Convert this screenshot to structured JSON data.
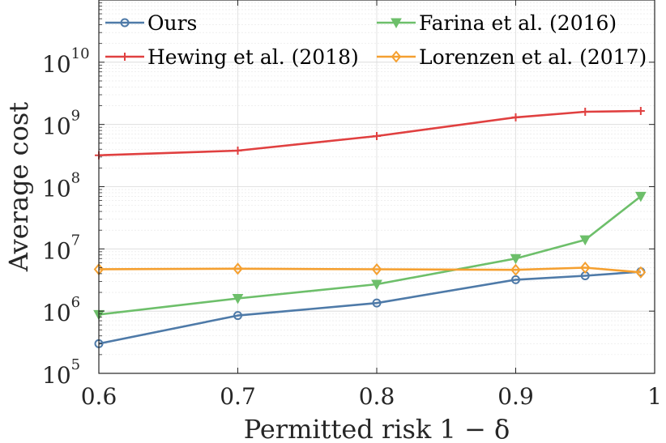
{
  "chart_data": {
    "type": "line",
    "xlabel": "Permitted risk 1 − δ",
    "ylabel": "Average cost",
    "xlim": [
      0.6,
      1.0
    ],
    "ylim_log10": [
      5,
      11
    ],
    "yscale": "log",
    "x_ticks": [
      "0.6",
      "0.7",
      "0.8",
      "0.9",
      "1"
    ],
    "x_tick_values": [
      0.6,
      0.7,
      0.8,
      0.9,
      1.0
    ],
    "y_ticks": [
      {
        "base": "10",
        "exp": "5",
        "value": 5
      },
      {
        "base": "10",
        "exp": "6",
        "value": 6
      },
      {
        "base": "10",
        "exp": "7",
        "value": 7
      },
      {
        "base": "10",
        "exp": "8",
        "value": 8
      },
      {
        "base": "10",
        "exp": "9",
        "value": 9
      },
      {
        "base": "10",
        "exp": "10",
        "value": 10
      }
    ],
    "grid": true,
    "legend_position": "top",
    "x": [
      0.6,
      0.7,
      0.8,
      0.9,
      0.95,
      0.99
    ],
    "series": [
      {
        "name": "Ours",
        "color": "#4E7AA8",
        "marker": "circle",
        "values": [
          300000,
          850000,
          1350000,
          3200000,
          3700000,
          4300000
        ]
      },
      {
        "name": "Hewing et al. (2018)",
        "color": "#E04040",
        "marker": "plus",
        "values": [
          320000000,
          380000000,
          650000000,
          1300000000,
          1600000000,
          1650000000
        ]
      },
      {
        "name": "Farina et al. (2016)",
        "color": "#6DBF6A",
        "marker": "triangle-down",
        "values": [
          880000,
          1600000,
          2700000,
          7000000,
          14000000,
          70000000
        ]
      },
      {
        "name": "Lorenzen et al. (2017)",
        "color": "#F5A030",
        "marker": "diamond",
        "values": [
          4700000,
          4800000,
          4700000,
          4600000,
          5000000,
          4200000
        ]
      }
    ]
  }
}
